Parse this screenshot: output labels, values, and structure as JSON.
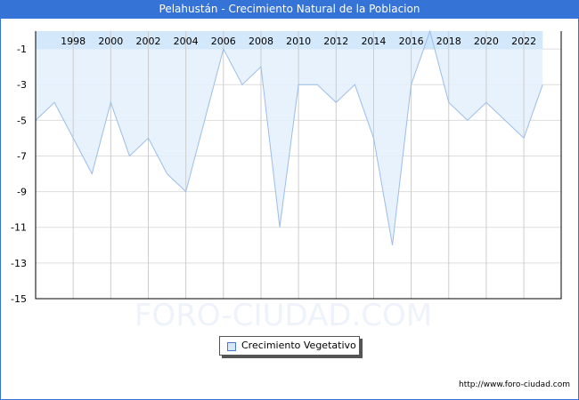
{
  "title": "Pelahustán - Crecimiento Natural de la Poblacion",
  "legend": {
    "label": "Crecimiento Vegetativo"
  },
  "footer": {
    "url": "http://www.foro-ciudad.com"
  },
  "watermark": "FORO-CIUDAD.COM",
  "colors": {
    "titlebar": "#3573d6",
    "line": "#9bbde8",
    "fill": "#e3f0fd",
    "band": "#cce5fb"
  },
  "chart_data": {
    "type": "area",
    "title": "Pelahustán - Crecimiento Natural de la Poblacion",
    "xlabel": "",
    "ylabel": "",
    "x": [
      1996,
      1997,
      1998,
      1999,
      2000,
      2001,
      2002,
      2003,
      2004,
      2005,
      2006,
      2007,
      2008,
      2009,
      2010,
      2011,
      2012,
      2013,
      2014,
      2015,
      2016,
      2017,
      2018,
      2019,
      2020,
      2021,
      2022,
      2023
    ],
    "series": [
      {
        "name": "Crecimiento Vegetativo",
        "values": [
          -5,
          -4,
          -6,
          -8,
          -4,
          -7,
          -6,
          -8,
          -9,
          -5,
          -1,
          -3,
          -2,
          -11,
          -3,
          -3,
          -4,
          -3,
          -6,
          -12,
          -3,
          0,
          -4,
          -5,
          -4,
          -5,
          -6,
          -3
        ]
      }
    ],
    "x_tick_labels": [
      "1998",
      "2000",
      "2002",
      "2004",
      "2006",
      "2008",
      "2010",
      "2012",
      "2014",
      "2016",
      "2018",
      "2020",
      "2022"
    ],
    "y_tick_labels": [
      "-1",
      "-3",
      "-5",
      "-7",
      "-9",
      "-11",
      "-13",
      "-15"
    ],
    "ylim": [
      -15,
      0
    ],
    "grid": true,
    "legend_position": "bottom-center"
  }
}
